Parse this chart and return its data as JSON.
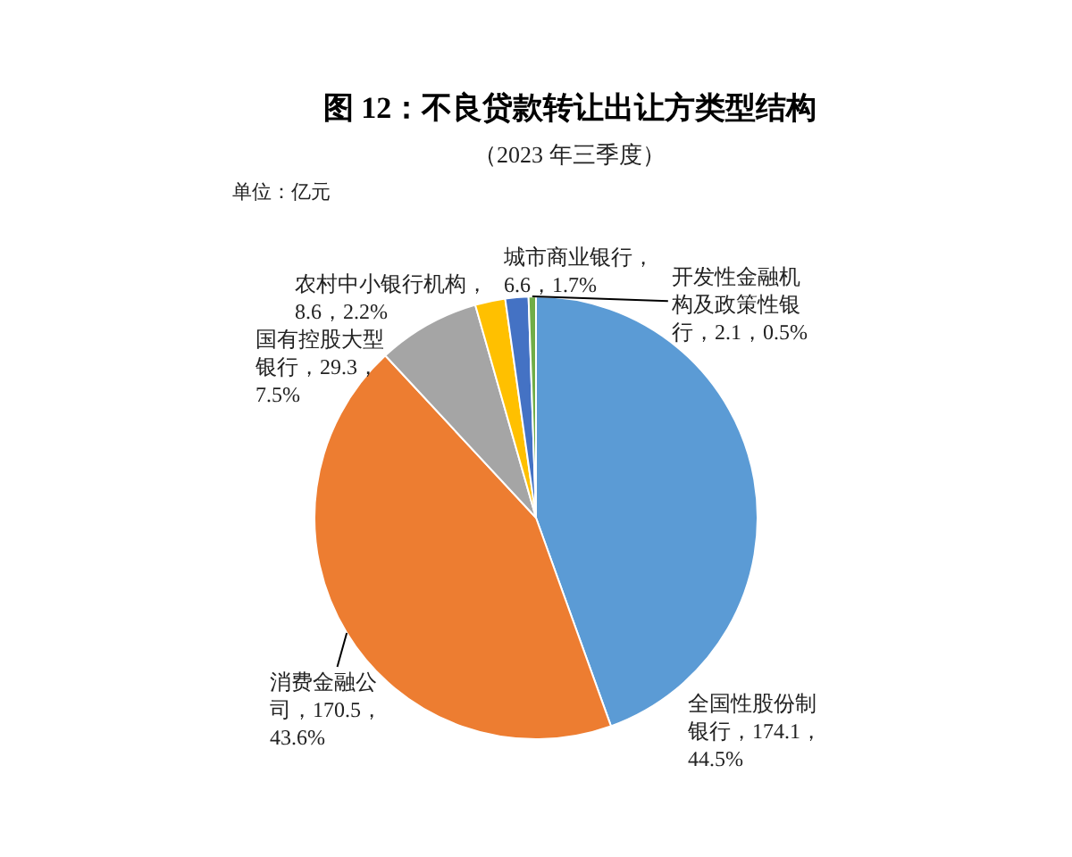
{
  "chart_data": {
    "type": "pie",
    "title": "图 12：不良贷款转让出让方类型结构",
    "subtitle": "（2023 年三季度）",
    "annotations": [
      "单位：亿元"
    ],
    "categories": [
      "全国性股份制银行",
      "消费金融公司",
      "国有控股大型银行",
      "农村中小银行机构",
      "城市商业银行",
      "开发性金融机构及政策性银行"
    ],
    "values": [
      174.1,
      170.5,
      29.3,
      8.6,
      6.6,
      2.1
    ],
    "value_labels": [
      "，174.1，44.5%",
      "，170.5，43.6%",
      "，29.3，7.5%",
      "，8.6，2.2%",
      "，6.6，1.7%",
      "，2.1，0.5%"
    ],
    "colors": [
      "#5b9bd5",
      "#ed7d31",
      "#a5a5a5",
      "#ffc000",
      "#4472c4",
      "#70ad47"
    ]
  }
}
